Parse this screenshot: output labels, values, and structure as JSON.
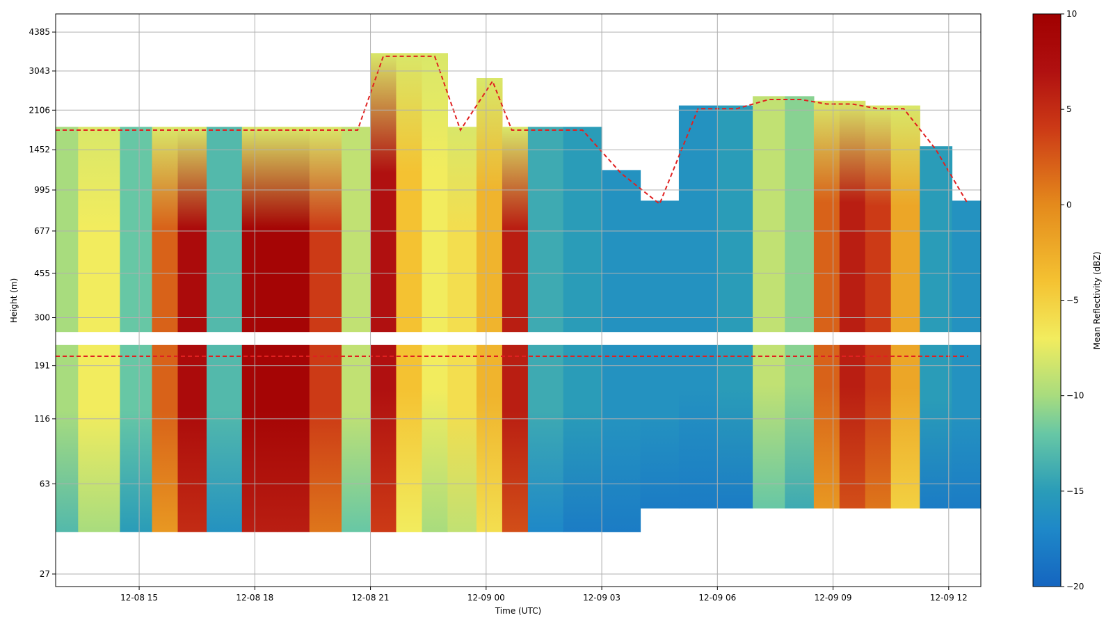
{
  "chart_data": {
    "type": "heatmap",
    "title": "",
    "xlabel": "Time (UTC)",
    "ylabel": "Height (m)",
    "colorbar_label": "Mean Reflectivity (dBZ)",
    "colorbar_range": [
      -20,
      10
    ],
    "colorbar_ticks": [
      10,
      5,
      0,
      -5,
      -10,
      -15,
      -20
    ],
    "colormap_stops": [
      {
        "v": -20,
        "c": "#1565c0"
      },
      {
        "v": -17,
        "c": "#1e88c8"
      },
      {
        "v": -15,
        "c": "#2a9cb8"
      },
      {
        "v": -12,
        "c": "#67c7a5"
      },
      {
        "v": -10,
        "c": "#a8dc7e"
      },
      {
        "v": -7,
        "c": "#f2ec5e"
      },
      {
        "v": -4,
        "c": "#f4c232"
      },
      {
        "v": 0,
        "c": "#e48a1c"
      },
      {
        "v": 4,
        "c": "#cc3a16"
      },
      {
        "v": 7,
        "c": "#b01010"
      },
      {
        "v": 10,
        "c": "#a00000"
      }
    ],
    "contour_color": "#e02020",
    "grid": true,
    "x_ticks": [
      "12-08 15",
      "12-08 18",
      "12-08 21",
      "12-09 00",
      "12-09 03",
      "12-09 06",
      "12-09 09",
      "12-09 12"
    ],
    "x_range": [
      "12-08 12:50",
      "12-09 12:50"
    ],
    "y_scale": "log",
    "y_ticks": [
      27,
      63,
      116,
      191,
      300,
      455,
      677,
      995,
      1452,
      2106,
      3043,
      4385
    ],
    "y_range": [
      24,
      5200
    ],
    "gap_band": [
      232,
      262
    ],
    "profiles": [
      {
        "t": "12-08 12:50",
        "top": 1800,
        "bot": 40,
        "value": -10
      },
      {
        "t": "12-08 14:00",
        "top": 1800,
        "bot": 40,
        "value": -7
      },
      {
        "t": "12-08 15:00",
        "top": 1800,
        "bot": 40,
        "value": -12
      },
      {
        "t": "12-08 15:40",
        "top": 1800,
        "bot": 40,
        "value": 2
      },
      {
        "t": "12-08 16:20",
        "top": 1800,
        "bot": 40,
        "value": 8
      },
      {
        "t": "12-08 17:10",
        "top": 1800,
        "bot": 40,
        "value": -13
      },
      {
        "t": "12-08 18:10",
        "top": 1800,
        "bot": 40,
        "value": 9
      },
      {
        "t": "12-08 19:00",
        "top": 1800,
        "bot": 40,
        "value": 9
      },
      {
        "t": "12-08 19:50",
        "top": 1800,
        "bot": 40,
        "value": 4
      },
      {
        "t": "12-08 20:40",
        "top": 1800,
        "bot": 40,
        "value": -9
      },
      {
        "t": "12-08 21:20",
        "top": 3600,
        "bot": 40,
        "value": 7
      },
      {
        "t": "12-08 22:00",
        "top": 3600,
        "bot": 40,
        "value": -4
      },
      {
        "t": "12-08 22:40",
        "top": 3600,
        "bot": 40,
        "value": -7
      },
      {
        "t": "12-08 23:20",
        "top": 1800,
        "bot": 40,
        "value": -6
      },
      {
        "t": "12-09 00:10",
        "top": 2850,
        "bot": 40,
        "value": -3
      },
      {
        "t": "12-09 00:40",
        "top": 1800,
        "bot": 40,
        "value": 6
      },
      {
        "t": "12-09 01:30",
        "top": 1800,
        "bot": 40,
        "value": -14
      },
      {
        "t": "12-09 02:30",
        "top": 1800,
        "bot": 40,
        "value": -15
      },
      {
        "t": "12-09 03:30",
        "top": 1200,
        "bot": 40,
        "value": -16
      },
      {
        "t": "12-09 04:30",
        "top": 900,
        "bot": 50,
        "value": -16
      },
      {
        "t": "12-09 05:30",
        "top": 2200,
        "bot": 50,
        "value": -16
      },
      {
        "t": "12-09 06:30",
        "top": 2200,
        "bot": 50,
        "value": -15
      },
      {
        "t": "12-09 07:20",
        "top": 2400,
        "bot": 50,
        "value": -9
      },
      {
        "t": "12-09 08:10",
        "top": 2400,
        "bot": 50,
        "value": -11
      },
      {
        "t": "12-09 08:50",
        "top": 2300,
        "bot": 50,
        "value": 2
      },
      {
        "t": "12-09 09:30",
        "top": 2300,
        "bot": 50,
        "value": 6
      },
      {
        "t": "12-09 10:10",
        "top": 2200,
        "bot": 50,
        "value": 4
      },
      {
        "t": "12-09 10:50",
        "top": 2200,
        "bot": 50,
        "value": -2
      },
      {
        "t": "12-09 11:40",
        "top": 1500,
        "bot": 50,
        "value": -15
      },
      {
        "t": "12-09 12:30",
        "top": 900,
        "bot": 50,
        "value": -16
      }
    ]
  }
}
